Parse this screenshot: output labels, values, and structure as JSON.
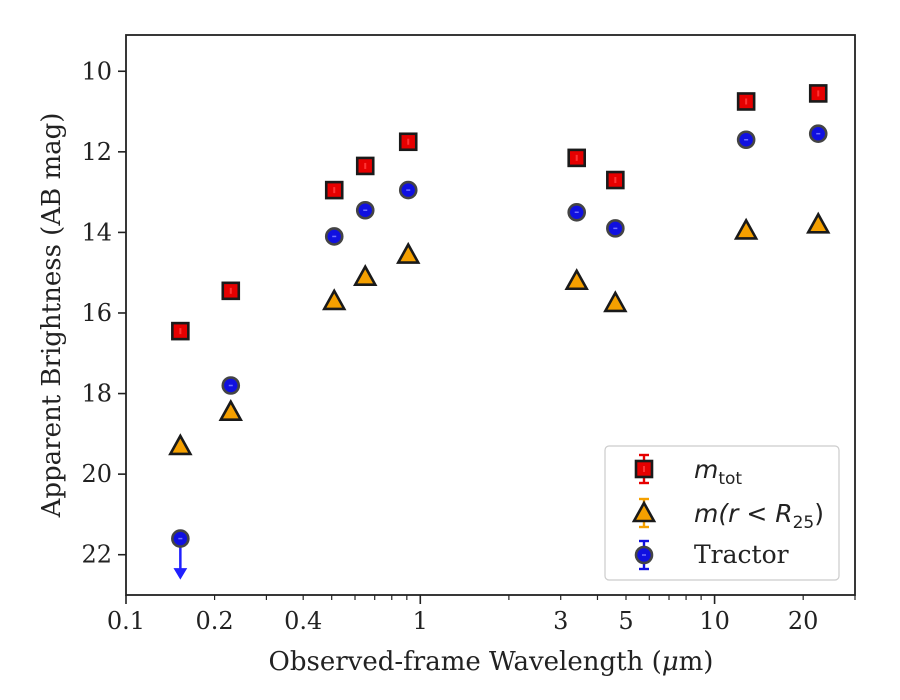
{
  "chart_data": {
    "type": "scatter",
    "xlabel_main": "Observed-frame Wavelength (",
    "xlabel_unit": "μ",
    "xlabel_tail": "m)",
    "ylabel": "Apparent Brightness (AB mag)",
    "xscale": "log",
    "xlim": [
      0.1,
      30
    ],
    "ylim": [
      23.0,
      9.1
    ],
    "y_inverted": true,
    "grid": false,
    "legend_position": "bottom-right",
    "x_ticks": [
      {
        "value": 0.1,
        "label": "0.1"
      },
      {
        "value": 0.2,
        "label": "0.2"
      },
      {
        "value": 0.4,
        "label": "0.4"
      },
      {
        "value": 1,
        "label": "1"
      },
      {
        "value": 3,
        "label": "3"
      },
      {
        "value": 5,
        "label": "5"
      },
      {
        "value": 10,
        "label": "10"
      },
      {
        "value": 20,
        "label": "20"
      }
    ],
    "y_ticks": [
      {
        "value": 10,
        "label": "10"
      },
      {
        "value": 12,
        "label": "12"
      },
      {
        "value": 14,
        "label": "14"
      },
      {
        "value": 16,
        "label": "16"
      },
      {
        "value": 18,
        "label": "18"
      },
      {
        "value": 20,
        "label": "20"
      },
      {
        "value": 22,
        "label": "22"
      }
    ],
    "series": [
      {
        "key": "mtot",
        "legend_main": "m",
        "legend_sub": "tot",
        "marker": "square",
        "color": "#e60000",
        "edge": "#1a1a1a",
        "x": [
          0.153,
          0.227,
          0.51,
          0.65,
          0.91,
          3.4,
          4.6,
          12.8,
          22.5
        ],
        "y": [
          16.45,
          15.45,
          12.95,
          12.35,
          11.75,
          12.15,
          12.7,
          10.75,
          10.55
        ]
      },
      {
        "key": "mr25",
        "legend_main": "m(r < R",
        "legend_sub": "25",
        "legend_tail": ")",
        "marker": "triangle",
        "color": "#f5a000",
        "edge": "#1a1a1a",
        "x": [
          0.153,
          0.227,
          0.51,
          0.65,
          0.91,
          3.4,
          4.6,
          12.8,
          22.5
        ],
        "y": [
          19.3,
          18.45,
          15.7,
          15.1,
          14.55,
          15.2,
          15.75,
          13.95,
          13.8
        ]
      },
      {
        "key": "tractor",
        "legend_main": "Tractor",
        "marker": "circle",
        "color": "#1010e0",
        "edge": "#444444",
        "x": [
          0.153,
          0.227,
          0.51,
          0.65,
          0.91,
          3.4,
          4.6,
          12.8,
          22.5
        ],
        "y": [
          21.6,
          17.8,
          14.1,
          13.45,
          12.95,
          13.5,
          13.9,
          11.7,
          11.55
        ],
        "upper_limit_index": 0
      }
    ]
  }
}
